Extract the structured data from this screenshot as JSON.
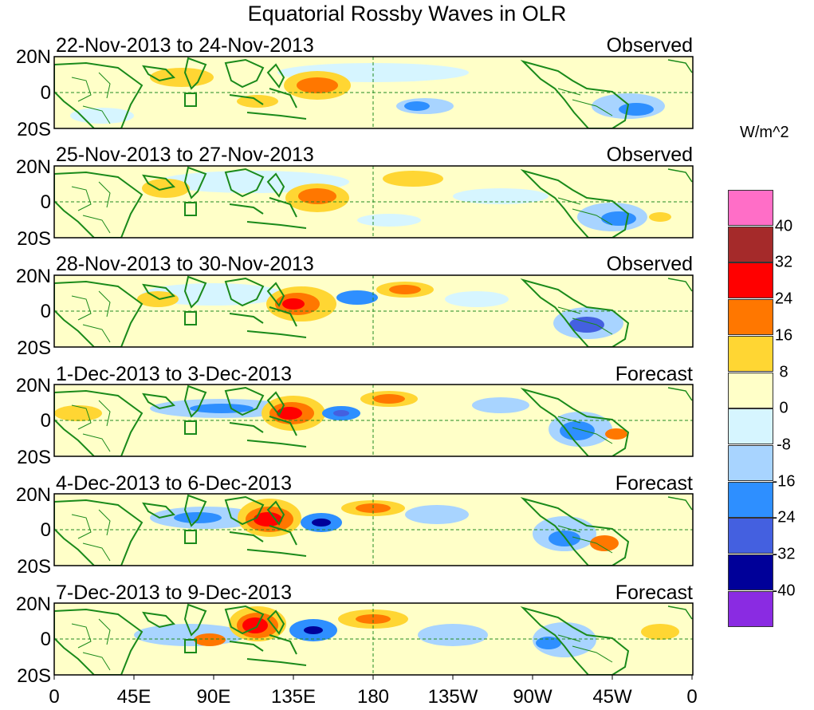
{
  "title": "Equatorial Rossby Waves in OLR",
  "panels": [
    {
      "range": "22-Nov-2013 to 24-Nov-2013",
      "kind": "Observed"
    },
    {
      "range": "25-Nov-2013 to 27-Nov-2013",
      "kind": "Observed"
    },
    {
      "range": "28-Nov-2013 to 30-Nov-2013",
      "kind": "Observed"
    },
    {
      "range": "1-Dec-2013 to 3-Dec-2013",
      "kind": "Forecast"
    },
    {
      "range": "4-Dec-2013 to 6-Dec-2013",
      "kind": "Forecast"
    },
    {
      "range": "7-Dec-2013 to 9-Dec-2013",
      "kind": "Forecast"
    }
  ],
  "lat_labels": [
    "20N",
    "0",
    "20S"
  ],
  "lon_labels": [
    "0",
    "45E",
    "90E",
    "135E",
    "180",
    "135W",
    "90W",
    "45W",
    "0"
  ],
  "colorbar": {
    "units": "W/m^2",
    "labels": [
      "40",
      "32",
      "24",
      "16",
      "8",
      "0",
      "-8",
      "-16",
      "-24",
      "-32",
      "-40"
    ],
    "colors": [
      "#ff6ec7",
      "#a52a2a",
      "#ff0000",
      "#ff7700",
      "#ffd633",
      "#ffffc8",
      "#d6f5ff",
      "#a8d4ff",
      "#2e8fff",
      "#4460e0",
      "#000099",
      "#8a2be2"
    ]
  },
  "colors": {
    "coast": "#1a8a1a",
    "guide": "#228b22"
  }
}
